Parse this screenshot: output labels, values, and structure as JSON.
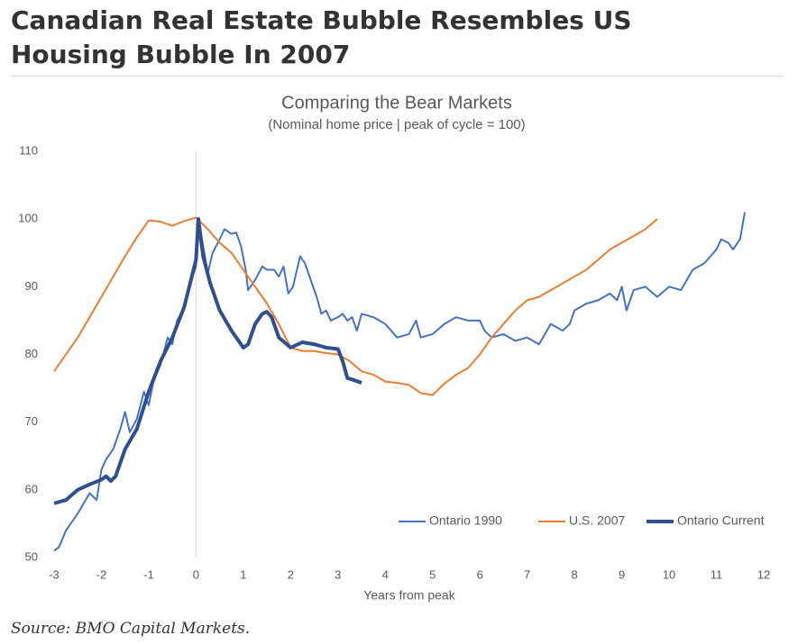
{
  "header": {
    "title": "Canadian Real Estate Bubble Resembles US Housing Bubble In 2007"
  },
  "chart_data": {
    "type": "line",
    "title": "Comparing the Bear Markets",
    "subtitle": "(Nominal home price | peak of cycle = 100)",
    "x_label": "Years from peak",
    "xlim": [
      -3,
      12
    ],
    "xticks": [
      -3,
      -2,
      -1,
      0,
      1,
      2,
      3,
      4,
      5,
      6,
      7,
      8,
      9,
      10,
      11,
      12
    ],
    "ylim": [
      50,
      110
    ],
    "yticks": [
      50,
      60,
      70,
      80,
      90,
      100,
      110
    ],
    "grid": false,
    "legend": "lower right",
    "series": [
      {
        "name": "Ontario 1990",
        "color": "#4472c4",
        "linewidth": 2,
        "x": [
          -3,
          -2.9,
          -2.75,
          -2.5,
          -2.25,
          -2.1,
          -2.0,
          -1.9,
          -1.75,
          -1.6,
          -1.5,
          -1.4,
          -1.25,
          -1.1,
          -1.0,
          -0.9,
          -0.75,
          -0.6,
          -0.5,
          -0.4,
          -0.25,
          -0.1,
          0,
          0.05,
          0.15,
          0.25,
          0.35,
          0.5,
          0.6,
          0.75,
          0.85,
          0.95,
          1.05,
          1.1,
          1.25,
          1.4,
          1.5,
          1.65,
          1.75,
          1.85,
          1.95,
          2.05,
          2.2,
          2.3,
          2.45,
          2.55,
          2.65,
          2.75,
          2.85,
          3.0,
          3.1,
          3.2,
          3.3,
          3.4,
          3.5,
          3.75,
          4.0,
          4.25,
          4.5,
          4.65,
          4.75,
          5.0,
          5.25,
          5.5,
          5.75,
          6.0,
          6.1,
          6.25,
          6.5,
          6.75,
          7.0,
          7.25,
          7.5,
          7.75,
          7.9,
          8.0,
          8.25,
          8.5,
          8.75,
          8.9,
          9.0,
          9.1,
          9.25,
          9.5,
          9.75,
          10.0,
          10.25,
          10.5,
          10.75,
          11.0,
          11.1,
          11.25,
          11.35,
          11.5,
          11.6
        ],
        "values": [
          51,
          51.5,
          54,
          56.5,
          59.5,
          58.5,
          63,
          64.5,
          66,
          69,
          71.5,
          68.5,
          70.5,
          74.5,
          72.5,
          76,
          78.5,
          82.5,
          81.5,
          85,
          87,
          91,
          93,
          100,
          96,
          92,
          95,
          97,
          98.5,
          97.8,
          98,
          96,
          92.5,
          89.5,
          91,
          93,
          92.5,
          92.5,
          91.5,
          93,
          89,
          90,
          94.5,
          93.5,
          90.5,
          88.5,
          86,
          86.5,
          85,
          85.5,
          86,
          85,
          85.5,
          83.5,
          86,
          85.5,
          84.5,
          82.5,
          83,
          85,
          82.5,
          83,
          84.5,
          85.5,
          85,
          85,
          83.5,
          82.5,
          83,
          82,
          82.5,
          81.5,
          84.5,
          83.5,
          84.5,
          86.5,
          87.5,
          88,
          89,
          88,
          90,
          86.5,
          89.5,
          90,
          88.5,
          90,
          89.5,
          92.5,
          93.5,
          95.5,
          97,
          96.5,
          95.5,
          97,
          101
        ]
      },
      {
        "name": "U.S. 2007",
        "color": "#ed7d31",
        "linewidth": 2,
        "x": [
          -3,
          -2.5,
          -2,
          -1.5,
          -1.25,
          -1,
          -0.75,
          -0.5,
          -0.25,
          0,
          0.25,
          0.5,
          0.75,
          1,
          1.25,
          1.5,
          1.75,
          2,
          2.25,
          2.5,
          2.75,
          3,
          3.25,
          3.5,
          3.75,
          4,
          4.25,
          4.5,
          4.75,
          5,
          5.25,
          5.5,
          5.75,
          6,
          6.25,
          6.5,
          6.75,
          7,
          7.25,
          7.5,
          7.75,
          8,
          8.25,
          8.5,
          8.75,
          9,
          9.25,
          9.5,
          9.75
        ],
        "values": [
          77.5,
          82.5,
          88.5,
          94.5,
          97.3,
          99.8,
          99.6,
          99,
          99.7,
          100.2,
          98.5,
          96.5,
          95,
          92.5,
          90,
          87.5,
          84.5,
          81,
          80.5,
          80.5,
          80.2,
          80,
          79,
          77.5,
          77,
          76,
          75.8,
          75.5,
          74.3,
          74,
          75.7,
          77,
          78,
          80,
          82.5,
          84.5,
          86.5,
          88,
          88.5,
          89.5,
          90.5,
          91.5,
          92.5,
          94,
          95.5,
          96.5,
          97.5,
          98.5,
          100
        ]
      },
      {
        "name": "Ontario Current",
        "color": "#2f4f8f",
        "linewidth": 4,
        "x": [
          -3,
          -2.75,
          -2.5,
          -2.25,
          -2,
          -1.9,
          -1.8,
          -1.7,
          -1.5,
          -1.25,
          -1,
          -0.75,
          -0.5,
          -0.25,
          0,
          0.05,
          0.15,
          0.3,
          0.5,
          0.75,
          1,
          1.1,
          1.25,
          1.4,
          1.5,
          1.6,
          1.75,
          2,
          2.25,
          2.5,
          2.75,
          3,
          3.1,
          3.2,
          3.3,
          3.5
        ],
        "values": [
          58,
          58.5,
          60,
          60.8,
          61.5,
          62,
          61.3,
          62,
          66,
          69,
          74.5,
          79,
          82.5,
          87,
          94,
          100,
          94.5,
          90.5,
          86.5,
          83.5,
          81,
          81.5,
          84.5,
          86,
          86.3,
          85.5,
          82.5,
          81,
          81.8,
          81.5,
          81,
          80.8,
          79,
          76.5,
          76.3,
          75.8
        ]
      }
    ]
  },
  "source": "Source: BMO Capital Markets."
}
